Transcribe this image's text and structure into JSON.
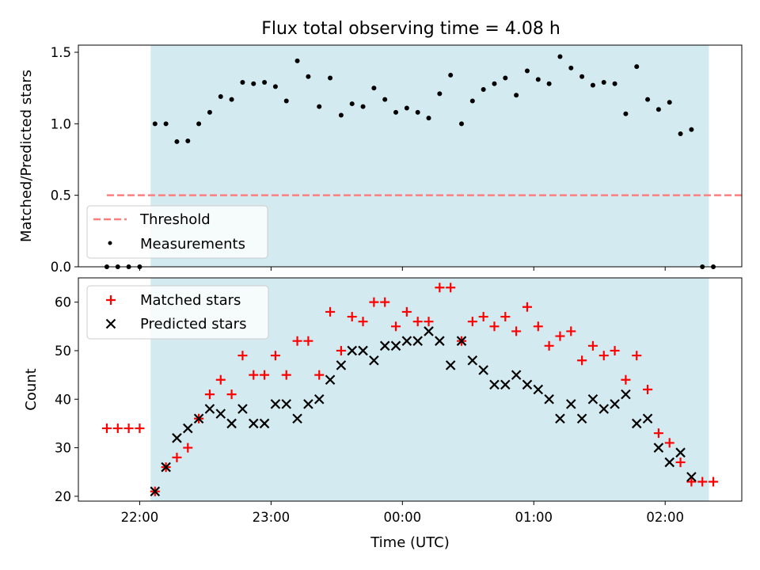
{
  "title": "Flux total observing time = 4.08 h",
  "colors": {
    "observing_band": "#d3eaf0",
    "threshold": "#ff7f7f",
    "measurements": "#000000",
    "matched": "#ff0000",
    "predicted": "#000000"
  },
  "chart_data": [
    {
      "type": "scatter",
      "ylabel": "Matched/Predicted stars",
      "ylim": [
        0,
        1.55
      ],
      "yticks": [
        0.0,
        0.5,
        1.0,
        1.5
      ],
      "ytick_labels": [
        "0.0",
        "0.5",
        "1.0",
        "1.5"
      ],
      "grid": false,
      "legend_position": "lower-left",
      "shaded_interval": [
        "22:05",
        "02:20"
      ],
      "threshold": {
        "name": "Threshold",
        "value": 0.5,
        "x_range": [
          "21:45",
          "02:35"
        ],
        "style": "dashed"
      },
      "series": [
        {
          "name": "Measurements",
          "points": [
            [
              "21:45",
              0.0
            ],
            [
              "21:50",
              0.0
            ],
            [
              "21:55",
              0.0
            ],
            [
              "22:00",
              0.0
            ],
            [
              "22:07",
              1.0
            ],
            [
              "22:12",
              1.0
            ],
            [
              "22:17",
              0.875
            ],
            [
              "22:22",
              0.88
            ],
            [
              "22:27",
              1.0
            ],
            [
              "22:32",
              1.08
            ],
            [
              "22:37",
              1.19
            ],
            [
              "22:42",
              1.17
            ],
            [
              "22:47",
              1.29
            ],
            [
              "22:52",
              1.28
            ],
            [
              "22:57",
              1.29
            ],
            [
              "23:02",
              1.26
            ],
            [
              "23:07",
              1.16
            ],
            [
              "23:12",
              1.44
            ],
            [
              "23:17",
              1.33
            ],
            [
              "23:22",
              1.12
            ],
            [
              "23:27",
              1.32
            ],
            [
              "23:32",
              1.06
            ],
            [
              "23:37",
              1.14
            ],
            [
              "23:42",
              1.12
            ],
            [
              "23:47",
              1.25
            ],
            [
              "23:52",
              1.17
            ],
            [
              "23:57",
              1.08
            ],
            [
              "00:02",
              1.11
            ],
            [
              "00:07",
              1.08
            ],
            [
              "00:12",
              1.04
            ],
            [
              "00:17",
              1.21
            ],
            [
              "00:22",
              1.34
            ],
            [
              "00:27",
              1.0
            ],
            [
              "00:32",
              1.16
            ],
            [
              "00:37",
              1.24
            ],
            [
              "00:42",
              1.28
            ],
            [
              "00:47",
              1.32
            ],
            [
              "00:52",
              1.2
            ],
            [
              "00:57",
              1.37
            ],
            [
              "01:02",
              1.31
            ],
            [
              "01:07",
              1.28
            ],
            [
              "01:12",
              1.47
            ],
            [
              "01:17",
              1.39
            ],
            [
              "01:22",
              1.33
            ],
            [
              "01:27",
              1.27
            ],
            [
              "01:32",
              1.29
            ],
            [
              "01:37",
              1.28
            ],
            [
              "01:42",
              1.07
            ],
            [
              "01:47",
              1.4
            ],
            [
              "01:52",
              1.17
            ],
            [
              "01:57",
              1.1
            ],
            [
              "02:02",
              1.15
            ],
            [
              "02:07",
              0.93
            ],
            [
              "02:12",
              0.96
            ],
            [
              "02:17",
              0.0
            ],
            [
              "02:22",
              0.0
            ]
          ]
        }
      ]
    },
    {
      "type": "scatter",
      "xlabel": "Time (UTC)",
      "ylabel": "Count",
      "ylim": [
        19,
        65
      ],
      "yticks": [
        20,
        30,
        40,
        50,
        60
      ],
      "ytick_labels": [
        "20",
        "30",
        "40",
        "50",
        "60"
      ],
      "xlim": [
        "21:32",
        "02:35"
      ],
      "xticks": [
        "22:00",
        "23:00",
        "00:00",
        "01:00",
        "02:00"
      ],
      "xtick_labels": [
        "22:00",
        "23:00",
        "00:00",
        "01:00",
        "02:00"
      ],
      "grid": false,
      "legend_position": "upper-left",
      "shaded_interval": [
        "22:05",
        "02:20"
      ],
      "series": [
        {
          "name": "Matched stars",
          "marker": "+",
          "points": [
            [
              "21:45",
              34
            ],
            [
              "21:50",
              34
            ],
            [
              "21:55",
              34
            ],
            [
              "22:00",
              34
            ],
            [
              "22:07",
              21
            ],
            [
              "22:12",
              26
            ],
            [
              "22:17",
              28
            ],
            [
              "22:22",
              30
            ],
            [
              "22:27",
              36
            ],
            [
              "22:32",
              41
            ],
            [
              "22:37",
              44
            ],
            [
              "22:42",
              41
            ],
            [
              "22:47",
              49
            ],
            [
              "22:52",
              45
            ],
            [
              "22:57",
              45
            ],
            [
              "23:02",
              49
            ],
            [
              "23:07",
              45
            ],
            [
              "23:12",
              52
            ],
            [
              "23:17",
              52
            ],
            [
              "23:22",
              45
            ],
            [
              "23:27",
              58
            ],
            [
              "23:32",
              50
            ],
            [
              "23:37",
              57
            ],
            [
              "23:42",
              56
            ],
            [
              "23:47",
              60
            ],
            [
              "23:52",
              60
            ],
            [
              "23:57",
              55
            ],
            [
              "00:02",
              58
            ],
            [
              "00:07",
              56
            ],
            [
              "00:12",
              56
            ],
            [
              "00:17",
              63
            ],
            [
              "00:22",
              63
            ],
            [
              "00:27",
              52
            ],
            [
              "00:32",
              56
            ],
            [
              "00:37",
              57
            ],
            [
              "00:42",
              55
            ],
            [
              "00:47",
              57
            ],
            [
              "00:52",
              54
            ],
            [
              "00:57",
              59
            ],
            [
              "01:02",
              55
            ],
            [
              "01:07",
              51
            ],
            [
              "01:12",
              53
            ],
            [
              "01:17",
              54
            ],
            [
              "01:22",
              48
            ],
            [
              "01:27",
              51
            ],
            [
              "01:32",
              49
            ],
            [
              "01:37",
              50
            ],
            [
              "01:42",
              44
            ],
            [
              "01:47",
              49
            ],
            [
              "01:52",
              42
            ],
            [
              "01:57",
              33
            ],
            [
              "02:02",
              31
            ],
            [
              "02:07",
              27
            ],
            [
              "02:12",
              23
            ],
            [
              "02:17",
              23
            ],
            [
              "02:22",
              23
            ]
          ]
        },
        {
          "name": "Predicted stars",
          "marker": "x",
          "points": [
            [
              "22:07",
              21
            ],
            [
              "22:12",
              26
            ],
            [
              "22:17",
              32
            ],
            [
              "22:22",
              34
            ],
            [
              "22:27",
              36
            ],
            [
              "22:32",
              38
            ],
            [
              "22:37",
              37
            ],
            [
              "22:42",
              35
            ],
            [
              "22:47",
              38
            ],
            [
              "22:52",
              35
            ],
            [
              "22:57",
              35
            ],
            [
              "23:02",
              39
            ],
            [
              "23:07",
              39
            ],
            [
              "23:12",
              36
            ],
            [
              "23:17",
              39
            ],
            [
              "23:22",
              40
            ],
            [
              "23:27",
              44
            ],
            [
              "23:32",
              47
            ],
            [
              "23:37",
              50
            ],
            [
              "23:42",
              50
            ],
            [
              "23:47",
              48
            ],
            [
              "23:52",
              51
            ],
            [
              "23:57",
              51
            ],
            [
              "00:02",
              52
            ],
            [
              "00:07",
              52
            ],
            [
              "00:12",
              54
            ],
            [
              "00:17",
              52
            ],
            [
              "00:22",
              47
            ],
            [
              "00:27",
              52
            ],
            [
              "00:32",
              48
            ],
            [
              "00:37",
              46
            ],
            [
              "00:42",
              43
            ],
            [
              "00:47",
              43
            ],
            [
              "00:52",
              45
            ],
            [
              "00:57",
              43
            ],
            [
              "01:02",
              42
            ],
            [
              "01:07",
              40
            ],
            [
              "01:12",
              36
            ],
            [
              "01:17",
              39
            ],
            [
              "01:22",
              36
            ],
            [
              "01:27",
              40
            ],
            [
              "01:32",
              38
            ],
            [
              "01:37",
              39
            ],
            [
              "01:42",
              41
            ],
            [
              "01:47",
              35
            ],
            [
              "01:52",
              36
            ],
            [
              "01:57",
              30
            ],
            [
              "02:02",
              27
            ],
            [
              "02:07",
              29
            ],
            [
              "02:12",
              24
            ]
          ]
        }
      ]
    }
  ]
}
